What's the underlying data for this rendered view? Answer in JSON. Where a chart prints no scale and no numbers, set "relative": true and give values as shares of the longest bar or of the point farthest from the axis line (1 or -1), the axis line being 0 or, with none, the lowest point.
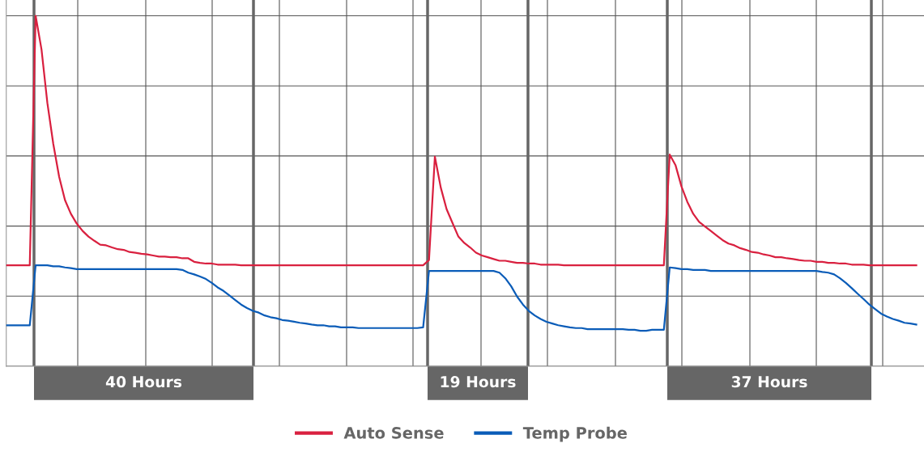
{
  "chart_data": {
    "type": "line",
    "relative": true,
    "grid": true,
    "legend": "bottom",
    "marker": "none",
    "line_style": "solid",
    "categories": [
      null,
      null,
      null,
      null,
      null,
      null,
      null,
      null,
      null,
      null,
      null,
      null,
      null,
      null,
      null,
      null,
      null,
      null,
      null,
      null,
      null,
      null,
      null,
      null,
      null,
      null,
      null,
      null,
      null,
      null,
      null,
      null,
      null,
      null,
      null,
      null,
      null,
      null,
      null,
      null,
      null,
      null,
      null,
      null,
      null,
      null,
      null,
      null,
      null,
      null,
      null,
      null,
      null,
      null,
      null,
      null,
      null,
      null,
      null,
      null,
      null,
      null,
      null,
      null,
      null,
      null,
      null,
      null,
      null,
      null,
      null,
      null,
      null,
      null,
      null,
      null,
      null,
      null,
      null,
      null,
      null,
      null,
      null,
      null,
      null,
      null,
      null,
      null,
      null,
      null,
      null,
      null,
      null,
      null,
      null,
      null,
      null,
      null,
      null,
      null,
      null,
      null,
      null,
      null,
      null,
      null,
      null,
      null,
      null,
      null,
      null,
      null,
      null,
      null,
      null,
      null,
      null,
      null,
      null,
      null,
      null,
      null,
      null,
      null,
      null,
      null,
      null,
      null,
      null,
      null,
      null,
      null,
      null,
      null,
      null,
      null,
      null,
      null,
      null,
      null,
      null,
      null,
      null,
      null,
      null,
      null,
      null,
      null,
      null,
      null,
      null,
      null,
      null,
      null,
      null,
      null
    ],
    "series": [
      {
        "name": "Auto Sense",
        "color": "#d9203f",
        "values": [
          0.288,
          0.288,
          0.288,
          0.288,
          0.288,
          1,
          0.904,
          0.751,
          0.635,
          0.541,
          0.474,
          0.435,
          0.407,
          0.386,
          0.37,
          0.358,
          0.347,
          0.345,
          0.339,
          0.334,
          0.332,
          0.326,
          0.324,
          0.321,
          0.319,
          0.316,
          0.313,
          0.313,
          0.311,
          0.311,
          0.308,
          0.308,
          0.298,
          0.295,
          0.293,
          0.293,
          0.29,
          0.29,
          0.29,
          0.29,
          0.288,
          0.288,
          0.288,
          0.288,
          0.288,
          0.288,
          0.288,
          0.288,
          0.288,
          0.288,
          0.288,
          0.288,
          0.288,
          0.288,
          0.288,
          0.288,
          0.288,
          0.288,
          0.288,
          0.288,
          0.288,
          0.288,
          0.288,
          0.288,
          0.288,
          0.288,
          0.288,
          0.288,
          0.288,
          0.288,
          0.288,
          0.288,
          0.303,
          0.598,
          0.51,
          0.448,
          0.409,
          0.37,
          0.352,
          0.339,
          0.324,
          0.316,
          0.311,
          0.306,
          0.301,
          0.301,
          0.298,
          0.295,
          0.295,
          0.293,
          0.293,
          0.29,
          0.29,
          0.29,
          0.29,
          0.288,
          0.288,
          0.288,
          0.288,
          0.288,
          0.288,
          0.288,
          0.288,
          0.288,
          0.288,
          0.288,
          0.288,
          0.288,
          0.288,
          0.288,
          0.288,
          0.288,
          0.288,
          0.604,
          0.573,
          0.513,
          0.469,
          0.435,
          0.412,
          0.399,
          0.386,
          0.373,
          0.36,
          0.35,
          0.345,
          0.337,
          0.332,
          0.326,
          0.324,
          0.319,
          0.316,
          0.311,
          0.311,
          0.308,
          0.306,
          0.303,
          0.301,
          0.301,
          0.298,
          0.298,
          0.295,
          0.295,
          0.293,
          0.293,
          0.29,
          0.29,
          0.29,
          0.288,
          0.288,
          0.288,
          0.288,
          0.288,
          0.288,
          0.288,
          0.288,
          0.288
        ]
      },
      {
        "name": "Temp Probe",
        "color": "#0a5cb8",
        "values": [
          0.117,
          0.117,
          0.117,
          0.117,
          0.117,
          0.288,
          0.288,
          0.288,
          0.285,
          0.285,
          0.282,
          0.28,
          0.277,
          0.277,
          0.277,
          0.277,
          0.277,
          0.277,
          0.277,
          0.277,
          0.277,
          0.277,
          0.277,
          0.277,
          0.277,
          0.277,
          0.277,
          0.277,
          0.277,
          0.277,
          0.275,
          0.267,
          0.262,
          0.256,
          0.249,
          0.238,
          0.225,
          0.215,
          0.202,
          0.189,
          0.176,
          0.166,
          0.158,
          0.153,
          0.145,
          0.14,
          0.137,
          0.132,
          0.13,
          0.127,
          0.124,
          0.122,
          0.119,
          0.117,
          0.117,
          0.114,
          0.114,
          0.111,
          0.111,
          0.111,
          0.109,
          0.109,
          0.109,
          0.109,
          0.109,
          0.109,
          0.109,
          0.109,
          0.109,
          0.109,
          0.109,
          0.111,
          0.272,
          0.272,
          0.272,
          0.272,
          0.272,
          0.272,
          0.272,
          0.272,
          0.272,
          0.272,
          0.272,
          0.272,
          0.267,
          0.251,
          0.228,
          0.199,
          0.176,
          0.158,
          0.145,
          0.135,
          0.127,
          0.122,
          0.117,
          0.114,
          0.111,
          0.109,
          0.109,
          0.106,
          0.106,
          0.106,
          0.106,
          0.106,
          0.106,
          0.106,
          0.104,
          0.104,
          0.101,
          0.101,
          0.104,
          0.104,
          0.104,
          0.282,
          0.28,
          0.277,
          0.277,
          0.275,
          0.275,
          0.275,
          0.272,
          0.272,
          0.272,
          0.272,
          0.272,
          0.272,
          0.272,
          0.272,
          0.272,
          0.272,
          0.272,
          0.272,
          0.272,
          0.272,
          0.272,
          0.272,
          0.272,
          0.272,
          0.272,
          0.269,
          0.267,
          0.262,
          0.251,
          0.238,
          0.223,
          0.207,
          0.192,
          0.176,
          0.163,
          0.15,
          0.142,
          0.135,
          0.13,
          0.124,
          0.122,
          0.119
        ]
      }
    ],
    "annotations": [
      "40 Hours",
      "19 Hours",
      "37 Hours"
    ]
  }
}
